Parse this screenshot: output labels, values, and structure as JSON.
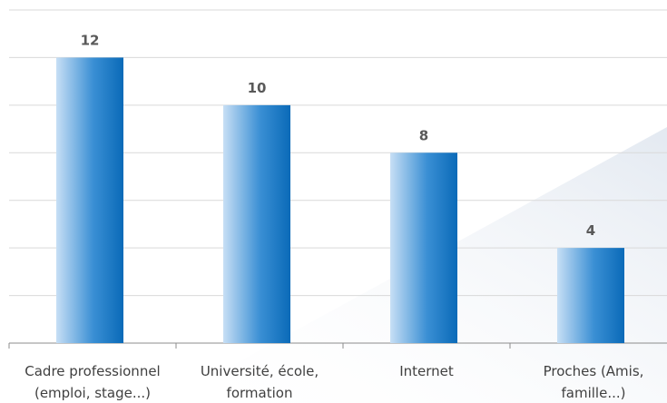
{
  "chart_data": {
    "type": "bar",
    "categories": [
      [
        "Cadre professionnel",
        "(emploi, stage...)"
      ],
      [
        "Université, école,",
        "formation"
      ],
      [
        "Internet"
      ],
      [
        "Proches (Amis,",
        "famille...)"
      ]
    ],
    "values": [
      12,
      10,
      8,
      4
    ],
    "title": "",
    "xlabel": "",
    "ylabel": "",
    "ylim": [
      0,
      14
    ],
    "grid": true,
    "legend": "none",
    "data_labels": true,
    "colors": {
      "bar_light": "#c7dff5",
      "bar_mid": "#3a8fd4",
      "bar_dark": "#0a6ab8",
      "gridline": "#d9d9d9",
      "axis": "#8c8c8c",
      "background_wash": "#eef2f7"
    }
  }
}
